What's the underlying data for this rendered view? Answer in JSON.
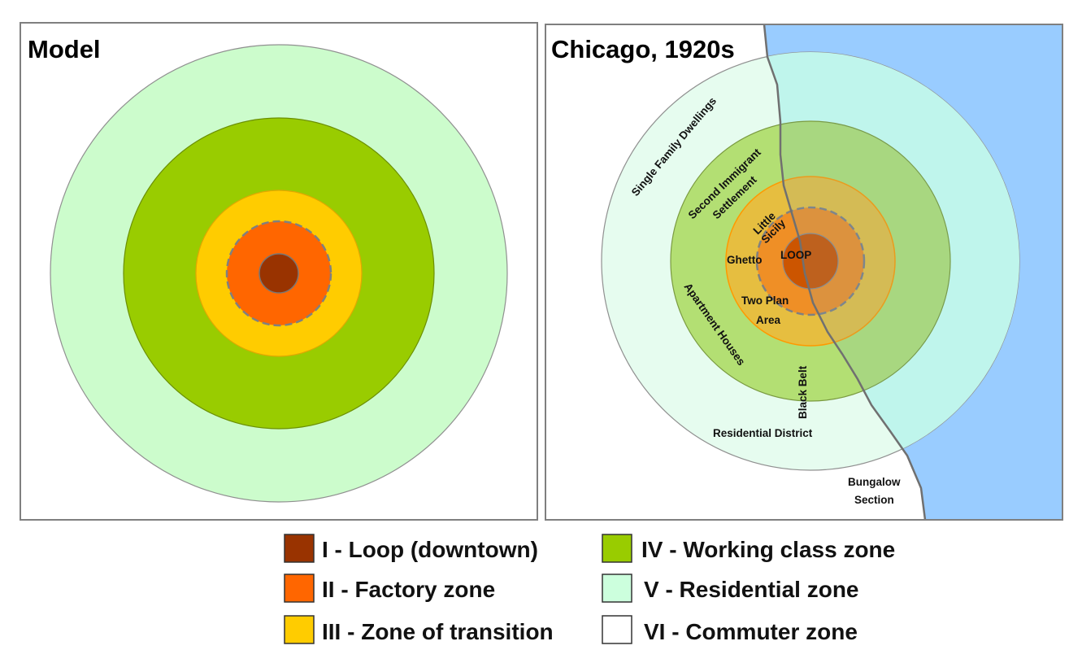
{
  "model": {
    "title": "Model",
    "ring_colors": [
      "#ccfccc",
      "#99cc00",
      "#ffcc00",
      "#ff6600",
      "#993300"
    ]
  },
  "chicago": {
    "title": "Chicago, 1920s",
    "lake_color": "#99ccff",
    "ring_colors": [
      "#e6fcef",
      "#bff5ec",
      "#b3df73",
      "#a8d97a",
      "#e6be40",
      "#e6a040",
      "#ef8f26",
      "#cc5500"
    ],
    "labels": {
      "single_family": "Single Family Dwellings",
      "second_immigrant_1": "Second Immigrant",
      "second_immigrant_2": "Settlement",
      "little_sicily_1": "Little",
      "little_sicily_2": "Sicily",
      "ghetto": "Ghetto",
      "loop": "LOOP",
      "two_plan_1": "Two Plan",
      "two_plan_2": "Area",
      "apartment": "Apartment Houses",
      "black_belt": "Black Belt",
      "residential": "Residential District",
      "bungalow_1": "Bungalow",
      "bungalow_2": "Section"
    }
  },
  "legend": [
    {
      "label": "I - Loop (downtown)",
      "color": "#993300"
    },
    {
      "label": "II - Factory zone",
      "color": "#ff6600"
    },
    {
      "label": "III - Zone of transition",
      "color": "#ffcc00"
    },
    {
      "label": "IV - Working class zone",
      "color": "#99cc00"
    },
    {
      "label": "V - Residential zone",
      "color": "#ccffdd"
    },
    {
      "label": "VI - Commuter zone",
      "color": "#ffffff"
    }
  ]
}
